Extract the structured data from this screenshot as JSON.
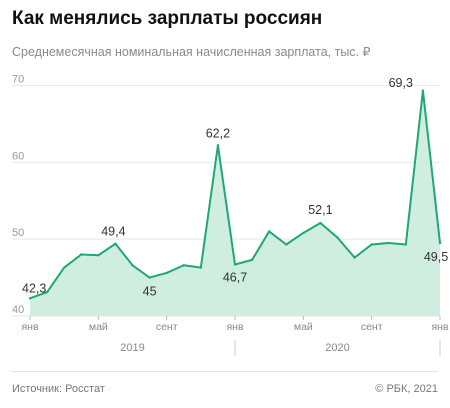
{
  "title": "Как менялись зарплаты россиян",
  "subtitle": "Среднемесячная номинальная начисленная зарплата, тыс. ₽",
  "source": "Источник: Росстат",
  "copyright": "© РБК, 2021",
  "colors": {
    "line": "#1fa873",
    "area": "#cfeee0",
    "grid": "#e6e6e6",
    "text": "#333333",
    "axis": "#999999"
  },
  "chart_data": {
    "type": "area",
    "y_unit": "тыс. ₽",
    "ylim": [
      40,
      72
    ],
    "yticks": [
      40,
      50,
      60,
      70
    ],
    "grid": true,
    "x": [
      "2019-01",
      "2019-02",
      "2019-03",
      "2019-04",
      "2019-05",
      "2019-06",
      "2019-07",
      "2019-08",
      "2019-09",
      "2019-10",
      "2019-11",
      "2019-12",
      "2020-01",
      "2020-02",
      "2020-03",
      "2020-04",
      "2020-05",
      "2020-06",
      "2020-07",
      "2020-08",
      "2020-09",
      "2020-10",
      "2020-11",
      "2020-12",
      "2021-01"
    ],
    "values": [
      42.3,
      43.1,
      46.3,
      48.0,
      47.9,
      49.4,
      46.6,
      45.0,
      45.6,
      46.6,
      46.3,
      62.2,
      46.7,
      47.3,
      51.0,
      49.3,
      50.8,
      52.1,
      50.2,
      47.6,
      49.3,
      49.5,
      49.3,
      69.3,
      49.5
    ],
    "data_labels": [
      {
        "index": 0,
        "text": "42,3"
      },
      {
        "index": 5,
        "text": "49,4"
      },
      {
        "index": 7,
        "text": "45"
      },
      {
        "index": 11,
        "text": "62,2"
      },
      {
        "index": 12,
        "text": "46,7"
      },
      {
        "index": 17,
        "text": "52,1"
      },
      {
        "index": 23,
        "text": "69,3"
      },
      {
        "index": 24,
        "text": "49,5"
      }
    ],
    "x_tick_labels": [
      {
        "index": 0,
        "text": "янв"
      },
      {
        "index": 4,
        "text": "май"
      },
      {
        "index": 8,
        "text": "сент"
      },
      {
        "index": 12,
        "text": "янв"
      },
      {
        "index": 16,
        "text": "май"
      },
      {
        "index": 20,
        "text": "сент"
      },
      {
        "index": 24,
        "text": "янв"
      }
    ],
    "year_labels": [
      {
        "start": 0,
        "end": 12,
        "text": "2019"
      },
      {
        "start": 12,
        "end": 24,
        "text": "2020"
      }
    ]
  }
}
